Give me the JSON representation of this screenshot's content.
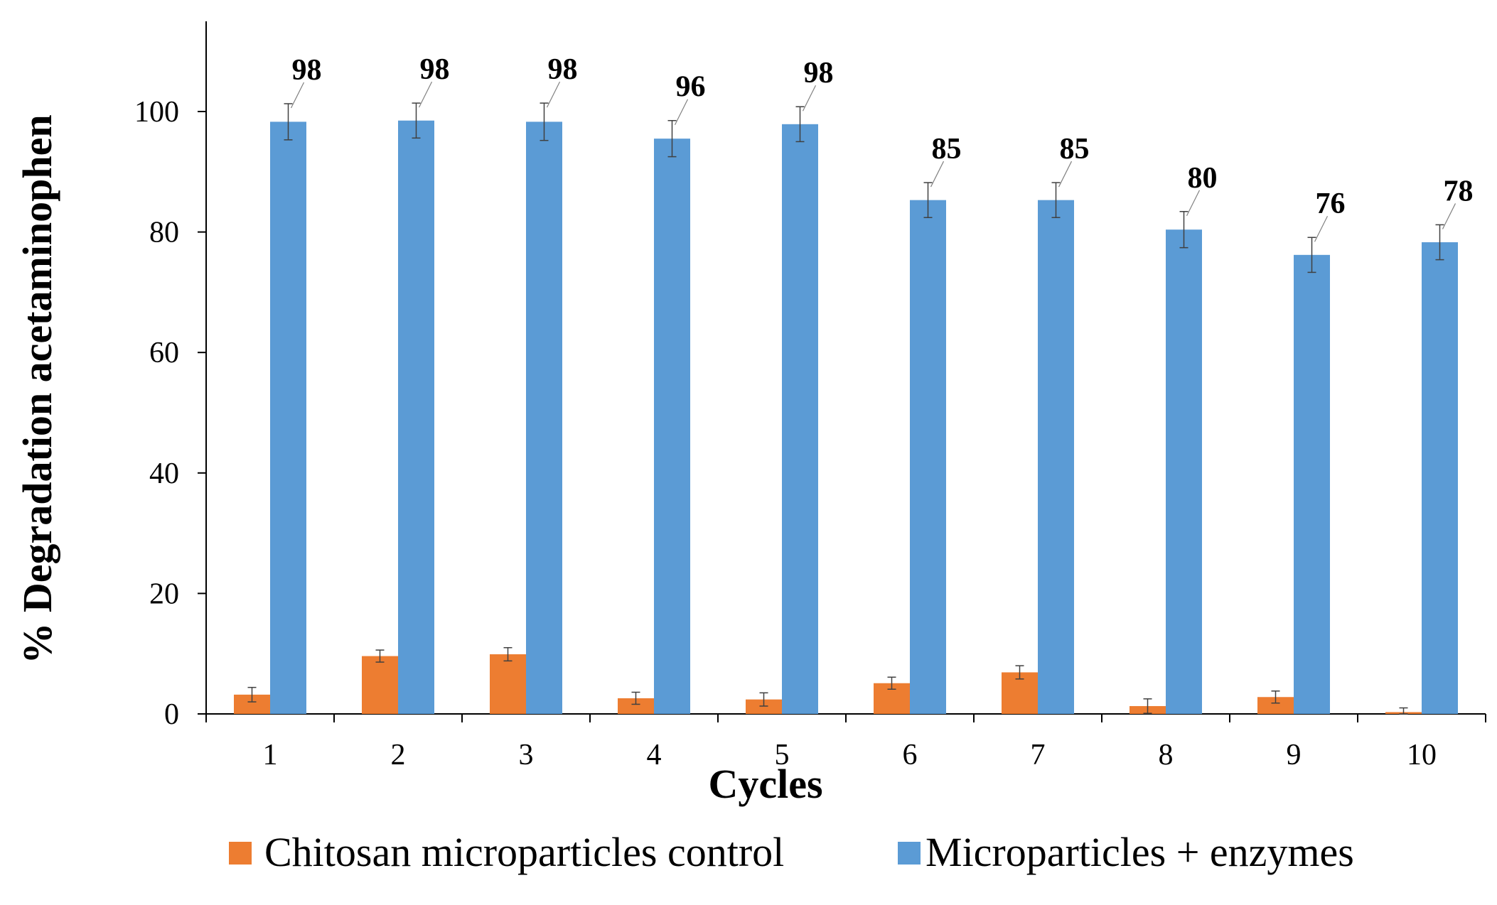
{
  "chart_data": {
    "type": "bar",
    "title": "",
    "xlabel": "Cycles",
    "ylabel": "% Degradation acetaminophen",
    "ylim": [
      0,
      115
    ],
    "yticks": [
      0,
      20,
      40,
      60,
      80,
      100
    ],
    "ytick_labels": [
      "0",
      "20",
      "40",
      "60",
      "80",
      "100"
    ],
    "categories": [
      "1",
      "2",
      "3",
      "4",
      "5",
      "6",
      "7",
      "8",
      "9",
      "10"
    ],
    "grid": false,
    "legend_position": "bottom",
    "series": [
      {
        "name": "Chitosan microparticles control",
        "color": "#ED7D31",
        "values": [
          3.2,
          9.6,
          9.9,
          2.6,
          2.4,
          5.1,
          6.9,
          1.3,
          2.8,
          0.3
        ],
        "errors": [
          1.2,
          1.0,
          1.1,
          1.0,
          1.1,
          1.0,
          1.1,
          1.2,
          1.0,
          0.7
        ],
        "data_labels": []
      },
      {
        "name": "Microparticles + enzymes",
        "color": "#5B9BD5",
        "values": [
          98.3,
          98.5,
          98.3,
          95.5,
          97.9,
          85.3,
          85.3,
          80.4,
          76.2,
          78.3
        ],
        "errors": [
          3.0,
          2.9,
          3.1,
          3.0,
          2.9,
          2.9,
          2.9,
          3.0,
          2.9,
          2.9
        ],
        "data_labels": [
          "98",
          "98",
          "98",
          "96",
          "98",
          "85",
          "85",
          "80",
          "76",
          "78"
        ]
      }
    ]
  }
}
